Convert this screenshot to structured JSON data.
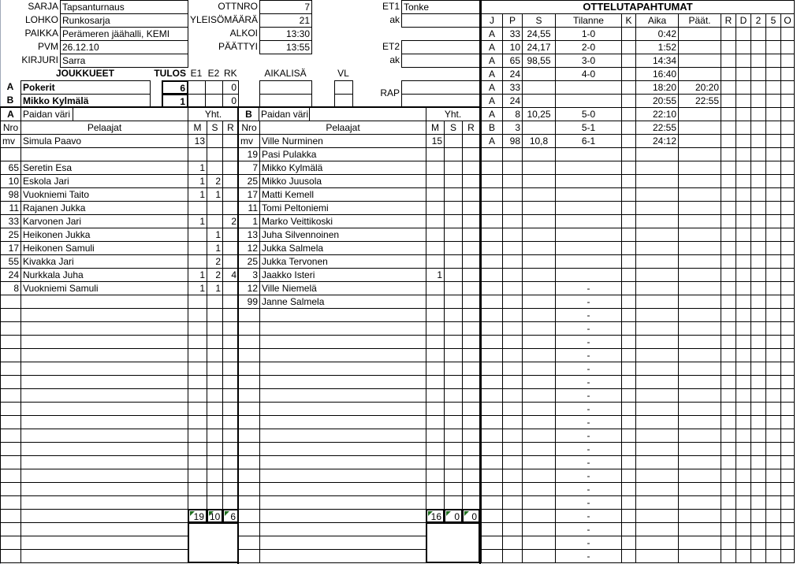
{
  "info": {
    "left": [
      {
        "label": "SARJA",
        "value": "Tapsanturnaus"
      },
      {
        "label": "LOHKO",
        "value": "Runkosarja"
      },
      {
        "label": "PAIKKA",
        "value": "Perämeren jäähalli, KEMI"
      },
      {
        "label": "PVM",
        "value": "26.12.10"
      },
      {
        "label": "KIRJURI",
        "value": "Sarra"
      }
    ],
    "middle": [
      {
        "label": "OTTNRO",
        "value": "7"
      },
      {
        "label": "YLEISÖMÄÄRÄ",
        "value": "21"
      },
      {
        "label": "ALKOI",
        "value": "13:30"
      },
      {
        "label": "PÄÄTTYI",
        "value": "13:55"
      }
    ],
    "officials": {
      "et1_label": "ET1",
      "et1_value": "Tonke",
      "ak_label": "ak",
      "et2_label": "ET2",
      "rap_label": "RAP"
    }
  },
  "teams_header": {
    "joukkueet": "JOUKKUEET",
    "tulos": "TULOS",
    "e1": "E1",
    "e2": "E2",
    "rk": "RK",
    "aikalisa": "AIKALISÄ",
    "vl": "VL"
  },
  "teams": [
    {
      "side": "A",
      "name": "Pokerit",
      "tulos": "6",
      "rk": "0"
    },
    {
      "side": "B",
      "name": "Mikko Kylmälä",
      "tulos": "1",
      "rk": "0"
    }
  ],
  "roster_header": {
    "paidan_vari": "Paidan väri",
    "yht": "Yht.",
    "nro": "Nro",
    "pelaajat": "Pelaajat",
    "m": "M",
    "s": "S",
    "r": "R"
  },
  "roster_a": [
    {
      "nro": "mv",
      "name": "Simula Paavo",
      "m": "13",
      "s": "",
      "r": ""
    },
    {
      "nro": "",
      "name": "",
      "m": "",
      "s": "",
      "r": ""
    },
    {
      "nro": "65",
      "name": "Seretin Esa",
      "m": "1",
      "s": "",
      "r": ""
    },
    {
      "nro": "10",
      "name": "Eskola Jari",
      "m": "1",
      "s": "2",
      "r": ""
    },
    {
      "nro": "98",
      "name": "Vuokniemi Taito",
      "m": "1",
      "s": "1",
      "r": ""
    },
    {
      "nro": "11",
      "name": "Rajanen Jukka",
      "m": "",
      "s": "",
      "r": ""
    },
    {
      "nro": "33",
      "name": "Karvonen Jari",
      "m": "1",
      "s": "",
      "r": "2"
    },
    {
      "nro": "25",
      "name": "Heikonen Jukka",
      "m": "",
      "s": "1",
      "r": ""
    },
    {
      "nro": "17",
      "name": "Heikonen Samuli",
      "m": "",
      "s": "1",
      "r": ""
    },
    {
      "nro": "55",
      "name": "Kivakka Jari",
      "m": "",
      "s": "2",
      "r": ""
    },
    {
      "nro": "24",
      "name": "Nurkkala Juha",
      "m": "1",
      "s": "2",
      "r": "4"
    },
    {
      "nro": "8",
      "name": "Vuokniemi Samuli",
      "m": "1",
      "s": "1",
      "r": ""
    }
  ],
  "roster_b": [
    {
      "nro": "mv",
      "name": "Ville Nurminen",
      "m": "15",
      "s": "",
      "r": ""
    },
    {
      "nro": "19",
      "name": "Pasi Pulakka",
      "m": "",
      "s": "",
      "r": ""
    },
    {
      "nro": "7",
      "name": "Mikko Kylmälä",
      "m": "",
      "s": "",
      "r": ""
    },
    {
      "nro": "25",
      "name": "Mikko Juusola",
      "m": "",
      "s": "",
      "r": ""
    },
    {
      "nro": "17",
      "name": "Matti Kemell",
      "m": "",
      "s": "",
      "r": ""
    },
    {
      "nro": "11",
      "name": "Tomi Peltoniemi",
      "m": "",
      "s": "",
      "r": ""
    },
    {
      "nro": "1",
      "name": "Marko Veittikoski",
      "m": "",
      "s": "",
      "r": ""
    },
    {
      "nro": "13",
      "name": "Juha Silvennoinen",
      "m": "",
      "s": "",
      "r": ""
    },
    {
      "nro": "12",
      "name": "Jukka Salmela",
      "m": "",
      "s": "",
      "r": ""
    },
    {
      "nro": "25",
      "name": "Jukka Tervonen",
      "m": "",
      "s": "",
      "r": ""
    },
    {
      "nro": "3",
      "name": "Jaakko Isteri",
      "m": "1",
      "s": "",
      "r": ""
    },
    {
      "nro": "12",
      "name": "Ville Niemelä",
      "m": "",
      "s": "",
      "r": ""
    },
    {
      "nro": "99",
      "name": "Janne Salmela",
      "m": "",
      "s": "",
      "r": ""
    }
  ],
  "totals_a": {
    "m": "19",
    "s": "10",
    "r": "6"
  },
  "totals_b": {
    "m": "16",
    "s": "0",
    "r": "0"
  },
  "events_title": "OTTELUTAPAHTUMAT",
  "events_columns": [
    "J",
    "P",
    "S",
    "Tilanne",
    "K",
    "Aika",
    "Päät.",
    "R",
    "D",
    "2",
    "5",
    "O"
  ],
  "events": [
    [
      "A",
      "33",
      "24,55",
      "1-0",
      "",
      "0:42",
      "",
      "",
      "",
      "",
      "",
      ""
    ],
    [
      "A",
      "10",
      "24,17",
      "2-0",
      "",
      "1:52",
      "",
      "",
      "",
      "",
      "",
      ""
    ],
    [
      "A",
      "65",
      "98,55",
      "3-0",
      "",
      "14:34",
      "",
      "",
      "",
      "",
      "",
      ""
    ],
    [
      "A",
      "24",
      "",
      "4-0",
      "",
      "16:40",
      "",
      "",
      "",
      "",
      "",
      ""
    ],
    [
      "A",
      "33",
      "",
      "",
      "",
      "18:20",
      "20:20",
      "",
      "",
      "",
      "",
      ""
    ],
    [
      "A",
      "24",
      "",
      "",
      "",
      "20:55",
      "22:55",
      "",
      "",
      "",
      "",
      ""
    ],
    [
      "A",
      "8",
      "10,25",
      "5-0",
      "",
      "22:10",
      "",
      "",
      "",
      "",
      "",
      ""
    ],
    [
      "B",
      "3",
      "",
      "5-1",
      "",
      "22:55",
      "",
      "",
      "",
      "",
      "",
      ""
    ],
    [
      "A",
      "98",
      "10,8",
      "6-1",
      "",
      "24:12",
      "",
      "",
      "",
      "",
      "",
      ""
    ]
  ],
  "empty_score": "-",
  "colors": {
    "grid": "#000000",
    "error_indicator": "#1f6e1f",
    "page_edge": "#a0a8b8"
  }
}
